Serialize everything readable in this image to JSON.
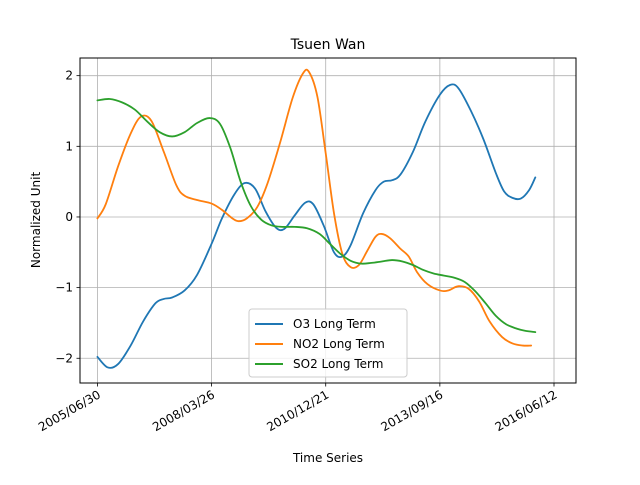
{
  "chart_data": {
    "type": "line",
    "title": "Tsuen Wan",
    "xlabel": "Time Series",
    "ylabel": "Normalized Unit",
    "x_ticks": [
      "2005/06/30",
      "2008/03/26",
      "2010/12/21",
      "2013/09/16",
      "2016/06/12"
    ],
    "x_tick_years": [
      2005.5,
      2008.25,
      2011.0,
      2013.75,
      2016.5
    ],
    "xlim": [
      2005.08,
      2017.03
    ],
    "ylim": [
      -2.35,
      2.25
    ],
    "y_ticks": [
      2,
      1,
      0,
      -1,
      -2
    ],
    "y_tick_labels": [
      "2",
      "1",
      "0",
      "−1",
      "−2"
    ],
    "grid": true,
    "legend_position": "lower center",
    "series": [
      {
        "name": "O3 Long Term",
        "color": "#1f77b4",
        "points": [
          [
            2005.5,
            -1.98
          ],
          [
            2005.75,
            -2.13
          ],
          [
            2006.0,
            -2.08
          ],
          [
            2006.3,
            -1.82
          ],
          [
            2006.6,
            -1.48
          ],
          [
            2006.9,
            -1.22
          ],
          [
            2007.1,
            -1.16
          ],
          [
            2007.3,
            -1.14
          ],
          [
            2007.6,
            -1.04
          ],
          [
            2007.9,
            -0.82
          ],
          [
            2008.25,
            -0.38
          ],
          [
            2008.5,
            -0.02
          ],
          [
            2008.8,
            0.32
          ],
          [
            2009.05,
            0.48
          ],
          [
            2009.3,
            0.4
          ],
          [
            2009.55,
            0.08
          ],
          [
            2009.8,
            -0.15
          ],
          [
            2010.0,
            -0.17
          ],
          [
            2010.25,
            0.02
          ],
          [
            2010.5,
            0.2
          ],
          [
            2010.7,
            0.18
          ],
          [
            2010.95,
            -0.12
          ],
          [
            2011.2,
            -0.5
          ],
          [
            2011.4,
            -0.56
          ],
          [
            2011.6,
            -0.4
          ],
          [
            2011.9,
            0.05
          ],
          [
            2012.2,
            0.38
          ],
          [
            2012.4,
            0.5
          ],
          [
            2012.6,
            0.52
          ],
          [
            2012.8,
            0.6
          ],
          [
            2013.1,
            0.92
          ],
          [
            2013.4,
            1.35
          ],
          [
            2013.75,
            1.73
          ],
          [
            2014.0,
            1.87
          ],
          [
            2014.2,
            1.82
          ],
          [
            2014.5,
            1.5
          ],
          [
            2014.8,
            1.1
          ],
          [
            2015.1,
            0.62
          ],
          [
            2015.3,
            0.36
          ],
          [
            2015.5,
            0.27
          ],
          [
            2015.7,
            0.26
          ],
          [
            2015.9,
            0.38
          ],
          [
            2016.05,
            0.56
          ]
        ]
      },
      {
        "name": "NO2 Long Term",
        "color": "#ff7f0e",
        "points": [
          [
            2005.5,
            -0.02
          ],
          [
            2005.7,
            0.18
          ],
          [
            2006.0,
            0.72
          ],
          [
            2006.3,
            1.18
          ],
          [
            2006.55,
            1.42
          ],
          [
            2006.8,
            1.36
          ],
          [
            2007.1,
            0.92
          ],
          [
            2007.4,
            0.45
          ],
          [
            2007.6,
            0.3
          ],
          [
            2007.9,
            0.24
          ],
          [
            2008.25,
            0.19
          ],
          [
            2008.5,
            0.1
          ],
          [
            2008.75,
            -0.02
          ],
          [
            2008.9,
            -0.06
          ],
          [
            2009.1,
            -0.02
          ],
          [
            2009.35,
            0.14
          ],
          [
            2009.6,
            0.48
          ],
          [
            2009.9,
            1.05
          ],
          [
            2010.2,
            1.68
          ],
          [
            2010.45,
            2.03
          ],
          [
            2010.6,
            2.05
          ],
          [
            2010.8,
            1.7
          ],
          [
            2011.0,
            0.9
          ],
          [
            2011.2,
            0.05
          ],
          [
            2011.4,
            -0.52
          ],
          [
            2011.6,
            -0.71
          ],
          [
            2011.8,
            -0.68
          ],
          [
            2012.0,
            -0.48
          ],
          [
            2012.2,
            -0.28
          ],
          [
            2012.35,
            -0.24
          ],
          [
            2012.55,
            -0.3
          ],
          [
            2012.8,
            -0.45
          ],
          [
            2013.0,
            -0.56
          ],
          [
            2013.2,
            -0.78
          ],
          [
            2013.45,
            -0.95
          ],
          [
            2013.75,
            -1.04
          ],
          [
            2013.95,
            -1.04
          ],
          [
            2014.2,
            -0.98
          ],
          [
            2014.45,
            -1.02
          ],
          [
            2014.7,
            -1.2
          ],
          [
            2014.95,
            -1.48
          ],
          [
            2015.25,
            -1.7
          ],
          [
            2015.5,
            -1.79
          ],
          [
            2015.75,
            -1.82
          ],
          [
            2015.95,
            -1.82
          ]
        ]
      },
      {
        "name": "SO2 Long Term",
        "color": "#2ca02c",
        "points": [
          [
            2005.5,
            1.65
          ],
          [
            2005.8,
            1.67
          ],
          [
            2006.1,
            1.62
          ],
          [
            2006.4,
            1.52
          ],
          [
            2006.7,
            1.35
          ],
          [
            2007.0,
            1.2
          ],
          [
            2007.3,
            1.14
          ],
          [
            2007.6,
            1.2
          ],
          [
            2007.9,
            1.33
          ],
          [
            2008.2,
            1.4
          ],
          [
            2008.45,
            1.32
          ],
          [
            2008.7,
            0.98
          ],
          [
            2008.95,
            0.5
          ],
          [
            2009.2,
            0.15
          ],
          [
            2009.45,
            -0.04
          ],
          [
            2009.7,
            -0.12
          ],
          [
            2009.95,
            -0.14
          ],
          [
            2010.25,
            -0.14
          ],
          [
            2010.55,
            -0.16
          ],
          [
            2010.85,
            -0.24
          ],
          [
            2011.1,
            -0.38
          ],
          [
            2011.35,
            -0.52
          ],
          [
            2011.6,
            -0.62
          ],
          [
            2011.85,
            -0.66
          ],
          [
            2012.1,
            -0.65
          ],
          [
            2012.35,
            -0.63
          ],
          [
            2012.6,
            -0.61
          ],
          [
            2012.85,
            -0.63
          ],
          [
            2013.1,
            -0.68
          ],
          [
            2013.35,
            -0.75
          ],
          [
            2013.6,
            -0.8
          ],
          [
            2013.85,
            -0.83
          ],
          [
            2014.1,
            -0.86
          ],
          [
            2014.35,
            -0.92
          ],
          [
            2014.6,
            -1.05
          ],
          [
            2014.85,
            -1.22
          ],
          [
            2015.1,
            -1.4
          ],
          [
            2015.35,
            -1.52
          ],
          [
            2015.6,
            -1.58
          ],
          [
            2015.8,
            -1.61
          ],
          [
            2016.05,
            -1.63
          ]
        ]
      }
    ]
  }
}
